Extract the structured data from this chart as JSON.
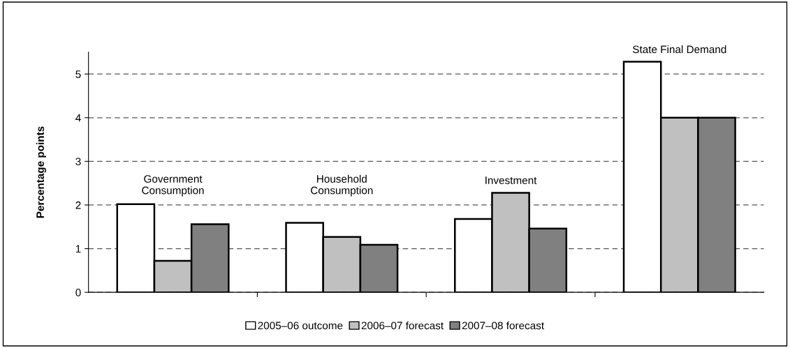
{
  "chart_data": {
    "type": "bar",
    "ylabel": "Percentage points",
    "categories": [
      "Government\nConsumption",
      "Household\nConsumption",
      "Investment",
      "State Final Demand"
    ],
    "series": [
      {
        "name": "2005–06 outcome",
        "color": "#ffffff",
        "values": [
          2.02,
          1.59,
          1.68,
          5.28
        ]
      },
      {
        "name": "2006–07 forecast",
        "color": "#c0c0c0",
        "values": [
          0.72,
          1.27,
          2.28,
          4.0
        ]
      },
      {
        "name": "2007–08 forecast",
        "color": "#808080",
        "values": [
          1.56,
          1.09,
          1.46,
          4.0
        ]
      }
    ],
    "ylim": [
      0,
      5.5
    ],
    "yticks": [
      0,
      1,
      2,
      3,
      4,
      5
    ],
    "grid": "y",
    "legend": "bottom"
  }
}
